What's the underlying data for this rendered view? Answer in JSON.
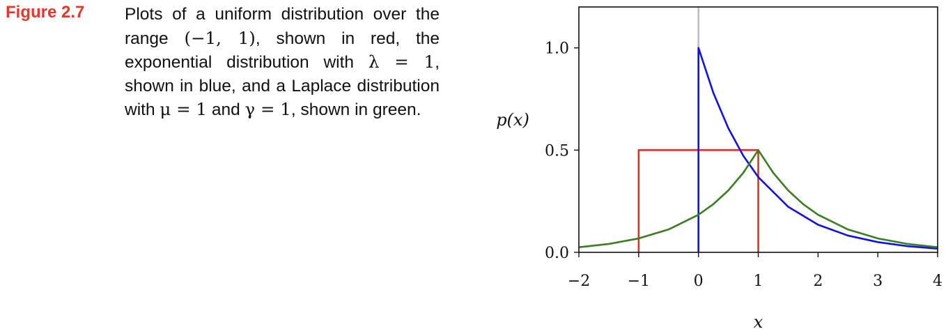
{
  "figure": {
    "label": "Figure 2.7",
    "caption_parts": [
      "Plots of a uniform distribution over the range ",
      "(−1, 1)",
      ", shown in red, the exponential distribution with ",
      "λ = 1",
      ", shown in blue, and a Laplace distribution with ",
      "μ = 1",
      " and ",
      "γ = 1",
      ", shown in green."
    ]
  },
  "chart_data": {
    "type": "line",
    "xlabel": "x",
    "ylabel": "p(x)",
    "xlim": [
      -2,
      4
    ],
    "ylim": [
      0,
      1.2
    ],
    "xticks": [
      -2,
      -1,
      0,
      1,
      2,
      3,
      4
    ],
    "xtick_labels": [
      "−2",
      "−1",
      "0",
      "1",
      "2",
      "3",
      "4"
    ],
    "yticks": [
      0,
      0.5,
      1.0
    ],
    "ytick_labels": [
      "0.0",
      "0.5",
      "1.0"
    ],
    "series": [
      {
        "distribution": "uniform",
        "color": "#e0302a",
        "points": [
          [
            -1,
            0
          ],
          [
            -1,
            0.5
          ],
          [
            1,
            0.5
          ],
          [
            1,
            0
          ]
        ]
      },
      {
        "distribution": "exponential",
        "color": "#1010e8",
        "points": [
          [
            0,
            0
          ],
          [
            0,
            1.0
          ],
          [
            0.25,
            0.779
          ],
          [
            0.5,
            0.607
          ],
          [
            0.75,
            0.472
          ],
          [
            1,
            0.368
          ],
          [
            1.5,
            0.223
          ],
          [
            2,
            0.135
          ],
          [
            2.5,
            0.082
          ],
          [
            3,
            0.05
          ],
          [
            3.5,
            0.03
          ],
          [
            4,
            0.018
          ]
        ]
      },
      {
        "distribution": "laplace",
        "color": "#3a7d22",
        "points": [
          [
            -2,
            0.025
          ],
          [
            -1.5,
            0.041
          ],
          [
            -1,
            0.068
          ],
          [
            -0.5,
            0.112
          ],
          [
            0,
            0.184
          ],
          [
            0.25,
            0.236
          ],
          [
            0.5,
            0.303
          ],
          [
            0.75,
            0.389
          ],
          [
            1,
            0.5
          ],
          [
            1.25,
            0.389
          ],
          [
            1.5,
            0.303
          ],
          [
            1.75,
            0.236
          ],
          [
            2,
            0.184
          ],
          [
            2.5,
            0.112
          ],
          [
            3,
            0.068
          ],
          [
            3.5,
            0.041
          ],
          [
            4,
            0.025
          ]
        ]
      }
    ],
    "vertical_reference_line": {
      "x": 0,
      "color": "#bbbbbb"
    },
    "grid": false,
    "legend": "none"
  }
}
